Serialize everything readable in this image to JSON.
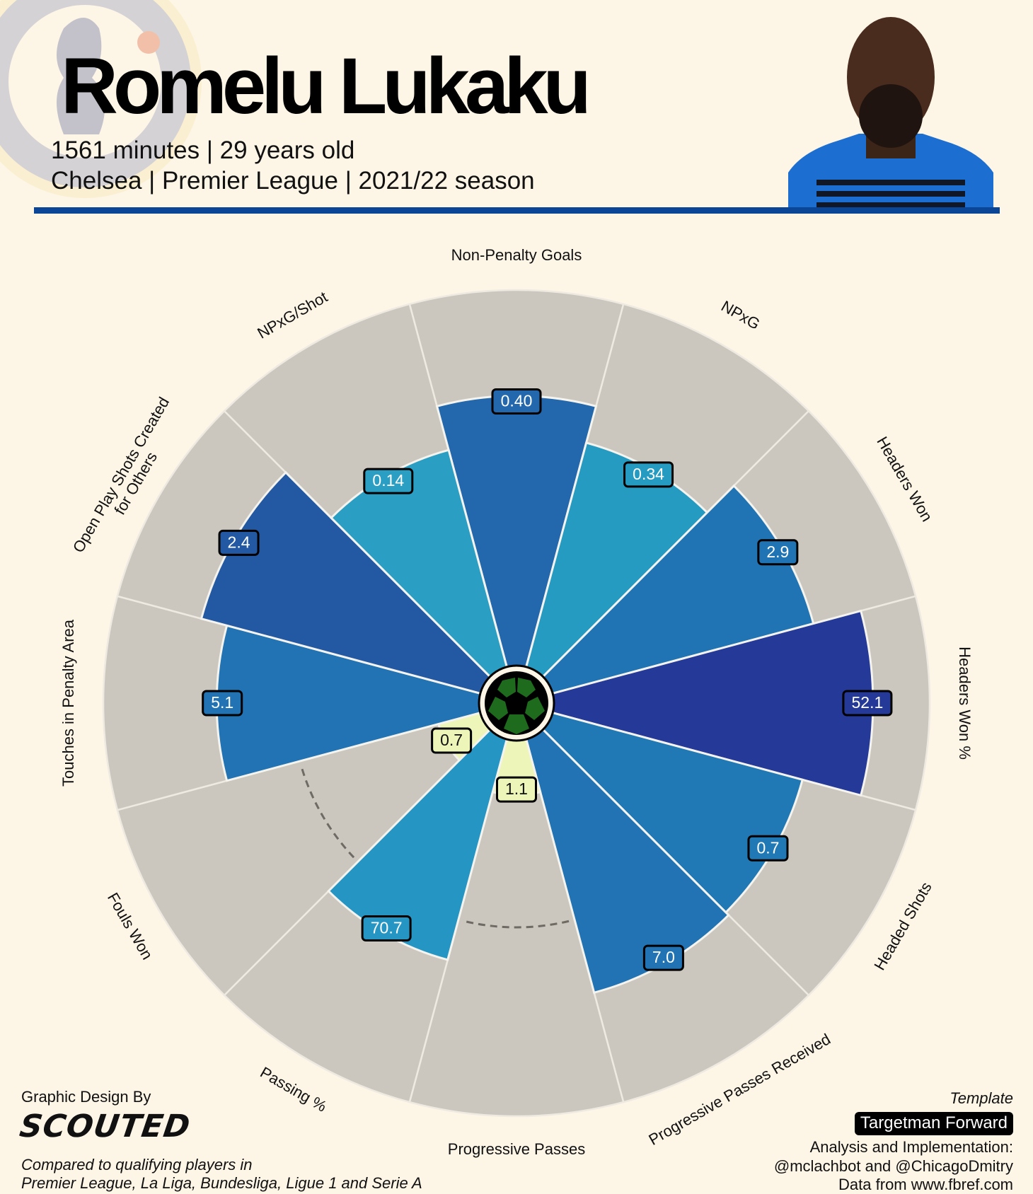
{
  "header": {
    "player_name": "Romelu Lukaku",
    "subtitle_line1": "1561 minutes | 29 years old",
    "subtitle_line2": "Chelsea | Premier League | 2021/22 season",
    "rule_color": "#0b4595"
  },
  "footer": {
    "design_by": "Graphic Design By",
    "designer_logo": "SCOUTED",
    "comparison_line1": "Compared to qualifying players in",
    "comparison_line2": "Premier League, La Liga, Bundesliga, Ligue 1 and Serie A",
    "template_label": "Template",
    "template_name": "Targetman Forward",
    "credit_line1": "Analysis and Implementation:",
    "credit_line2": "@mclachbot and @ChicagoDmitry",
    "credit_line3": "Data from www.fbref.com"
  },
  "chart_data": {
    "type": "pie",
    "subtype": "polar-bar (pizza), percentile rank 0-100, value labels show raw stat",
    "background_slice_color": "#cbc7bf",
    "rlim": [
      0,
      100
    ],
    "slices": [
      {
        "label": "Non-Penalty Goals",
        "value": "0.40",
        "percentile": 72,
        "color": "#2368ac"
      },
      {
        "label": "NPxG",
        "value": "0.34",
        "percentile": 62,
        "color": "#259bc2"
      },
      {
        "label": "Headers Won",
        "value": "2.9",
        "percentile": 72,
        "color": "#2174b3"
      },
      {
        "label": "Headers Won %",
        "value": "52.1",
        "percentile": 85,
        "color": "#253a98"
      },
      {
        "label": "Headed Shots",
        "value": "0.7",
        "percentile": 69,
        "color": "#2079b4"
      },
      {
        "label": "Progressive Passes Received",
        "value": "7.0",
        "percentile": 70,
        "color": "#2173b3"
      },
      {
        "label": "Progressive Passes",
        "value": "1.1",
        "percentile": 15,
        "color": "#edf6b8",
        "reference_percentile": 50
      },
      {
        "label": "Passing %",
        "value": "70.7",
        "percentile": 61,
        "color": "#2596c4"
      },
      {
        "label": "Fouls Won",
        "value": "0.7",
        "percentile": 12,
        "color": "#edf6b8",
        "reference_percentile": 50
      },
      {
        "label": "Touches in Penalty Area",
        "value": "5.1",
        "percentile": 70,
        "color": "#2173b3"
      },
      {
        "label": "Open Play Shots Created\nfor Others",
        "value": "2.4",
        "percentile": 77,
        "color": "#2359a3"
      },
      {
        "label": "NPxG/Shot",
        "value": "0.14",
        "percentile": 60,
        "color": "#2a9ec3"
      }
    ]
  }
}
